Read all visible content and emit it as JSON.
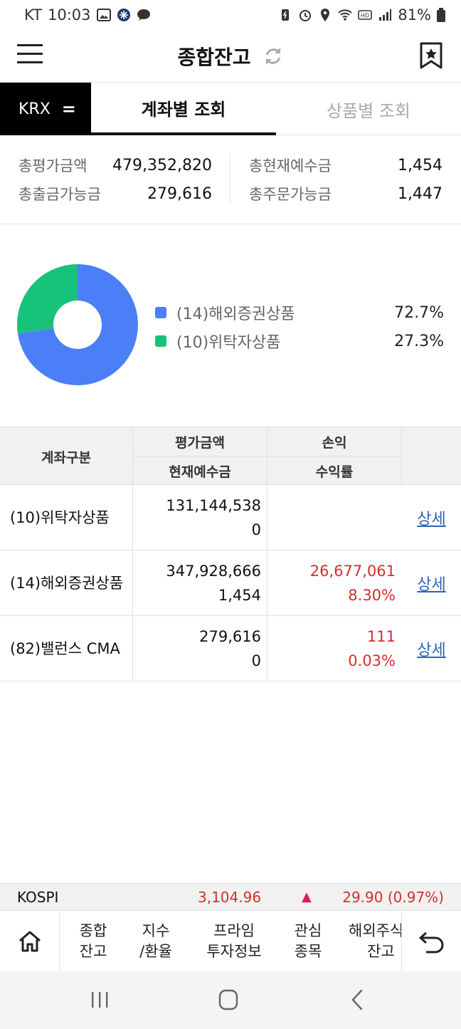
{
  "status_bar": {
    "carrier": "KT",
    "time": "10:03",
    "battery": "81%"
  },
  "header": {
    "title": "종합잔고"
  },
  "tabs": {
    "market": "KRX",
    "market_icon": "=",
    "items": [
      {
        "label": "계좌별 조회",
        "active": true
      },
      {
        "label": "상품별 조회",
        "active": false
      }
    ]
  },
  "summary": {
    "total_eval_label": "총평가금액",
    "total_eval_value": "479,352,820",
    "total_withdraw_label": "총출금가능금",
    "total_withdraw_value": "279,616",
    "total_deposit_label": "총현재예수금",
    "total_deposit_value": "1,454",
    "total_order_label": "총주문가능금",
    "total_order_value": "1,447"
  },
  "chart_data": {
    "type": "pie",
    "categories": [
      "(14)해외증권상품",
      "(10)위탁자상품"
    ],
    "values": [
      72.7,
      27.3
    ],
    "labels": [
      "72.7%",
      "27.3%"
    ],
    "colors": [
      "#4a7ff7",
      "#17c37b"
    ]
  },
  "table": {
    "headers": {
      "account": "계좌구분",
      "eval": "평가금액",
      "deposit": "현재예수금",
      "pnl": "손익",
      "rate": "수익률"
    },
    "rows": [
      {
        "name": "(10)위탁자상품",
        "eval": "131,144,538",
        "deposit": "0",
        "pnl": "",
        "rate": "",
        "link": "상세"
      },
      {
        "name": "(14)해외증권상품",
        "eval": "347,928,666",
        "deposit": "1,454",
        "pnl": "26,677,061",
        "rate": "8.30%",
        "link": "상세"
      },
      {
        "name": "(82)밸런스 CMA",
        "eval": "279,616",
        "deposit": "0",
        "pnl": "111",
        "rate": "0.03%",
        "link": "상세"
      }
    ]
  },
  "ticker": {
    "index": "KOSPI",
    "price": "3,104.96",
    "direction_icon": "▲",
    "change": "29.90 (0.97%)"
  },
  "bottom_nav": {
    "items": [
      {
        "line1": "종합",
        "line2": "잔고"
      },
      {
        "line1": "지수",
        "line2": "/환율"
      },
      {
        "line1": "프라임",
        "line2": "투자정보"
      },
      {
        "line1": "관심",
        "line2": "종목"
      },
      {
        "line1": "해외주식",
        "line2": "잔고"
      }
    ]
  },
  "colors": {
    "accent": "#111111",
    "up_red": "#d32f2f",
    "link_blue": "#2e63b8",
    "donut_blue": "#4a7ff7",
    "donut_green": "#17c37b"
  }
}
